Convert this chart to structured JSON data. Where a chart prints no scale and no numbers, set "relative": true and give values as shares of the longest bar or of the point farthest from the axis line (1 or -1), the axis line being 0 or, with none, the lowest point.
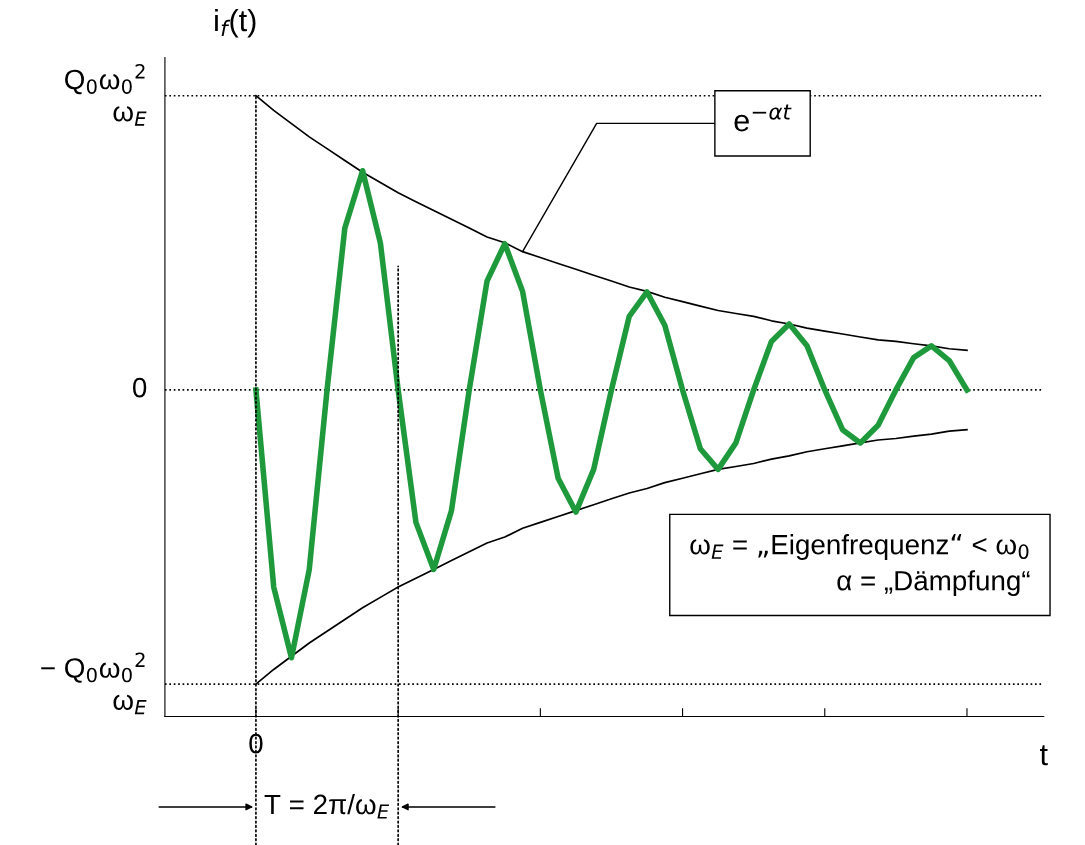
{
  "chart_data": {
    "type": "line",
    "xlabel": "t",
    "ylabel": "i$_{f}$(t)",
    "relative": true,
    "categories": [
      null,
      null,
      null,
      null,
      null,
      null,
      null,
      null,
      null,
      null,
      null,
      null,
      null,
      null,
      null,
      null,
      null,
      null,
      null,
      null,
      null,
      null,
      null,
      null,
      null,
      null,
      null,
      null,
      null,
      null,
      null,
      null,
      null,
      null,
      null,
      null,
      null,
      null,
      null,
      null,
      null
    ],
    "series": [
      {
        "color": "#1e9a3c",
        "values": [
          0,
          -0.67,
          -0.91,
          -0.61,
          0,
          0.55,
          0.745,
          0.5,
          0,
          -0.45,
          -0.61,
          -0.41,
          0,
          0.37,
          0.497,
          0.335,
          0,
          -0.3,
          -0.415,
          -0.27,
          0,
          0.25,
          0.333,
          0.22,
          0,
          -0.2,
          -0.27,
          -0.18,
          0,
          0.165,
          0.224,
          0.15,
          0,
          -0.135,
          -0.18,
          -0.12,
          0,
          0.11,
          0.15,
          0.1,
          0
        ]
      },
      {
        "color": "#000000",
        "values": [
          1.0,
          0.95,
          0.905,
          0.86,
          0.82,
          0.78,
          0.74,
          0.705,
          0.67,
          0.64,
          0.61,
          0.58,
          0.55,
          0.52,
          0.5,
          0.47,
          0.45,
          0.43,
          0.41,
          0.39,
          0.37,
          0.35,
          0.335,
          0.315,
          0.3,
          0.285,
          0.27,
          0.26,
          0.25,
          0.235,
          0.224,
          0.21,
          0.2,
          0.19,
          0.18,
          0.17,
          0.165,
          0.157,
          0.15,
          0.14,
          0.135
        ]
      },
      {
        "color": "#000000",
        "values": [
          -1.0,
          -0.95,
          -0.905,
          -0.86,
          -0.82,
          -0.78,
          -0.74,
          -0.705,
          -0.67,
          -0.64,
          -0.61,
          -0.58,
          -0.55,
          -0.52,
          -0.5,
          -0.47,
          -0.45,
          -0.43,
          -0.41,
          -0.39,
          -0.37,
          -0.35,
          -0.335,
          -0.315,
          -0.3,
          -0.285,
          -0.27,
          -0.26,
          -0.25,
          -0.235,
          -0.224,
          -0.21,
          -0.2,
          -0.19,
          -0.18,
          -0.17,
          -0.165,
          -0.157,
          -0.15,
          -0.14,
          -0.135
        ]
      }
    ],
    "ref_lines": [
      {
        "axis": "y",
        "value": 0,
        "line_style": "dotted"
      },
      {
        "axis": "y",
        "value": 1,
        "line_style": "dotted"
      },
      {
        "axis": "y",
        "value": -1,
        "line_style": "dotted"
      }
    ],
    "annotations": [
      "e$^{−αt}$",
      "ω$_{E}$ = „Eigenfrequenz“ < ω$_{0}$\nα = „Dämpfung“",
      "T = 2π/ω$_{E}$",
      "Q$_{0}$ω$_{0}$$^{2}$\nω$_{E}$",
      "0",
      "− Q$_{0}$ω$_{0}$$^{2}$\nω$_{E}$",
      "0"
    ],
    "grid": false,
    "legend": false,
    "marker": "none",
    "line_style": "solid"
  }
}
